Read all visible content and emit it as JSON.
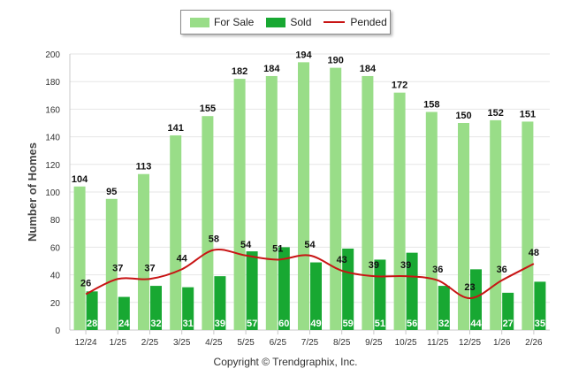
{
  "chart_data": {
    "type": "bar",
    "categories": [
      "12/24",
      "1/25",
      "2/25",
      "3/25",
      "4/25",
      "5/25",
      "6/25",
      "7/25",
      "8/25",
      "9/25",
      "10/25",
      "11/25",
      "12/25",
      "1/26",
      "2/26"
    ],
    "series": [
      {
        "name": "For Sale",
        "kind": "bar",
        "color": "#99dd88",
        "values": [
          104,
          95,
          113,
          141,
          155,
          182,
          184,
          194,
          190,
          184,
          172,
          158,
          150,
          152,
          151
        ]
      },
      {
        "name": "Sold",
        "kind": "bar",
        "color": "#18a832",
        "values": [
          28,
          24,
          32,
          31,
          39,
          57,
          60,
          49,
          59,
          51,
          56,
          32,
          44,
          27,
          35
        ]
      },
      {
        "name": "Pended",
        "kind": "line",
        "color": "#c81414",
        "values": [
          26,
          37,
          37,
          44,
          58,
          54,
          51,
          54,
          43,
          39,
          39,
          36,
          23,
          36,
          48
        ]
      }
    ],
    "title": "",
    "xlabel": "",
    "ylabel": "Number of Homes",
    "ylim": [
      0,
      200
    ],
    "yticks": [
      0,
      20,
      40,
      60,
      80,
      100,
      120,
      140,
      160,
      180,
      200
    ],
    "grid": true,
    "legend_position": "top-center"
  },
  "footer": {
    "copyright": "Copyright © Trendgraphix, Inc."
  }
}
